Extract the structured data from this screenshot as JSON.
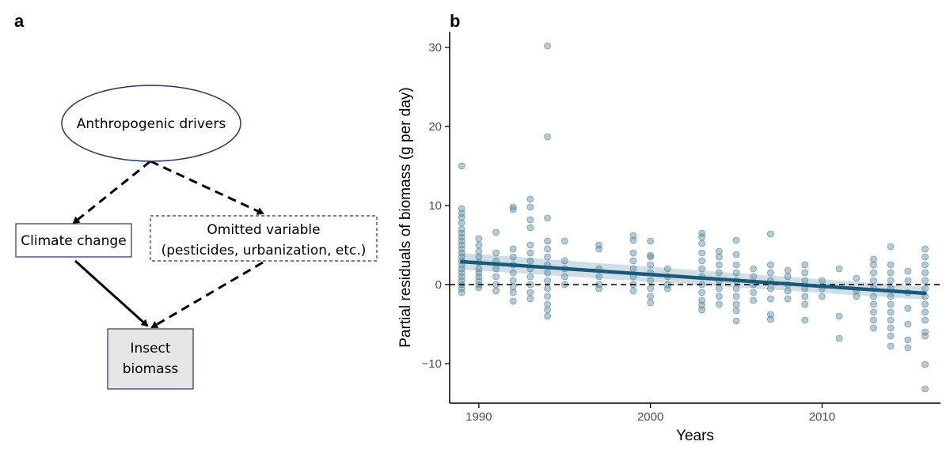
{
  "panels": {
    "a_label": "a",
    "b_label": "b"
  },
  "diagram": {
    "nodes": {
      "anthropogenic": "Anthropogenic drivers",
      "climate": "Climate change",
      "omitted_line1": "Omitted variable",
      "omitted_line2": "(pesticides, urbanization, etc.)",
      "insect_line1": "Insect",
      "insect_line2": "biomass"
    },
    "edges": [
      {
        "from": "anthropogenic",
        "to": "climate",
        "style": "dashed"
      },
      {
        "from": "anthropogenic",
        "to": "omitted",
        "style": "dashed"
      },
      {
        "from": "climate",
        "to": "insect",
        "style": "solid"
      },
      {
        "from": "omitted",
        "to": "insect",
        "style": "dashed"
      }
    ],
    "colors": {
      "ellipse_stroke": "#1f3864",
      "box_stroke": "#1f3864",
      "insect_fill": "#e6e6e6"
    }
  },
  "chart_data": {
    "type": "scatter",
    "xlabel": "Years",
    "ylabel": "Partial residuals of biomass (g per day)",
    "xlim": [
      1988.3,
      2016.9
    ],
    "ylim": [
      -15,
      32
    ],
    "xticks": [
      1990,
      2000,
      2010
    ],
    "xtick_labels": [
      "1990",
      "2000",
      "2010"
    ],
    "yticks": [
      -10,
      0,
      10,
      20,
      30
    ],
    "ytick_labels": [
      "−10",
      "0",
      "10",
      "20",
      "30"
    ],
    "reference_line": {
      "y": 0,
      "style": "dashed"
    },
    "trend": {
      "x": [
        1989,
        2016
      ],
      "y": [
        2.9,
        -1.1
      ],
      "ci_lower": [
        1.9,
        -1.9
      ],
      "ci_upper": [
        4.0,
        -0.3
      ]
    },
    "point_color": "#5a8aa0",
    "line_color": "#1a5a78",
    "ci_color": "#a9c2cf",
    "points": [
      {
        "x": 1989,
        "y": [
          15.0,
          9.6,
          9.0,
          8.5,
          7.8,
          7.0,
          6.5,
          6.0,
          5.5,
          5.0,
          4.5,
          4.0,
          3.5,
          3.0,
          2.5,
          2.0,
          1.5,
          1.0,
          0.5,
          0.0,
          -0.5,
          -1.0
        ]
      },
      {
        "x": 1990,
        "y": [
          5.8,
          5.0,
          4.2,
          3.5,
          2.8,
          2.0,
          1.5,
          1.0,
          0.5,
          0.0,
          -0.4
        ]
      },
      {
        "x": 1991,
        "y": [
          6.6,
          4.0,
          3.0,
          2.0,
          1.0,
          0.0,
          -0.8
        ]
      },
      {
        "x": 1992,
        "y": [
          9.8,
          9.5,
          4.5,
          3.5,
          2.5,
          1.5,
          0.5,
          -0.3,
          -1.0,
          -2.1
        ]
      },
      {
        "x": 1993,
        "y": [
          10.8,
          9.8,
          8.2,
          7.2,
          5.0,
          4.0,
          3.0,
          2.0,
          1.0,
          0.0,
          -1.0,
          -1.8
        ]
      },
      {
        "x": 1994,
        "y": [
          30.2,
          18.7,
          8.4,
          5.5,
          4.5,
          3.5,
          2.5,
          1.5,
          0.5,
          -0.5,
          -1.5,
          -2.5,
          -3.2,
          -4.0
        ]
      },
      {
        "x": 1995,
        "y": [
          5.5,
          3.0,
          2.0,
          1.0,
          0.0
        ]
      },
      {
        "x": 1997,
        "y": [
          5.0,
          4.5,
          2.0,
          1.0,
          0.0,
          -0.5
        ]
      },
      {
        "x": 1999,
        "y": [
          6.2,
          5.6,
          4.0,
          3.0,
          2.0,
          1.0,
          0.0,
          -0.8
        ]
      },
      {
        "x": 2000,
        "y": [
          5.5,
          3.7,
          3.5,
          2.5,
          1.5,
          0.5,
          -0.5,
          -1.5,
          -2.3
        ]
      },
      {
        "x": 2001,
        "y": [
          2.0,
          1.0,
          0.0,
          -0.5
        ]
      },
      {
        "x": 2003,
        "y": [
          6.5,
          6.0,
          5.2,
          4.0,
          3.0,
          2.0,
          1.0,
          0.0,
          -1.0,
          -2.0,
          -2.6,
          -3.2
        ]
      },
      {
        "x": 2004,
        "y": [
          4.2,
          3.5,
          2.5,
          1.5,
          0.5,
          -0.5,
          -1.5,
          -2.5
        ]
      },
      {
        "x": 2005,
        "y": [
          5.6,
          3.8,
          2.5,
          1.5,
          0.5,
          -0.5,
          -1.5,
          -2.5,
          -3.3,
          -4.6
        ]
      },
      {
        "x": 2006,
        "y": [
          2.0,
          1.0,
          0.0,
          -1.0,
          -2.0
        ]
      },
      {
        "x": 2007,
        "y": [
          6.4,
          2.5,
          1.5,
          0.5,
          -0.5,
          -1.8,
          -3.8,
          -4.4
        ]
      },
      {
        "x": 2008,
        "y": [
          1.8,
          1.0,
          0.0,
          -0.8,
          -1.8
        ]
      },
      {
        "x": 2009,
        "y": [
          2.5,
          1.5,
          0.5,
          -0.5,
          -1.5,
          -2.5,
          -4.5
        ]
      },
      {
        "x": 2010,
        "y": [
          0.5,
          -0.5,
          -1.5
        ]
      },
      {
        "x": 2011,
        "y": [
          2.0,
          -4.0,
          -6.8
        ]
      },
      {
        "x": 2012,
        "y": [
          0.8,
          -0.8,
          -1.5
        ]
      },
      {
        "x": 2013,
        "y": [
          3.2,
          2.5,
          1.5,
          0.5,
          -0.5,
          -1.5,
          -2.5,
          -3.5,
          -4.5,
          -5.5
        ]
      },
      {
        "x": 2014,
        "y": [
          4.8,
          2.5,
          1.5,
          0.5,
          -0.5,
          -1.5,
          -2.5,
          -3.5,
          -4.5,
          -5.5,
          -6.5,
          -7.8
        ]
      },
      {
        "x": 2015,
        "y": [
          1.7,
          0.5,
          -1.0,
          -3.0,
          -5.0,
          -7.0,
          -8.0
        ]
      },
      {
        "x": 2016,
        "y": [
          4.5,
          3.5,
          2.5,
          1.5,
          0.5,
          -0.5,
          -1.5,
          -2.5,
          -3.5,
          -4.5,
          -6.0,
          -6.5,
          -10.1,
          -13.2
        ]
      }
    ]
  }
}
